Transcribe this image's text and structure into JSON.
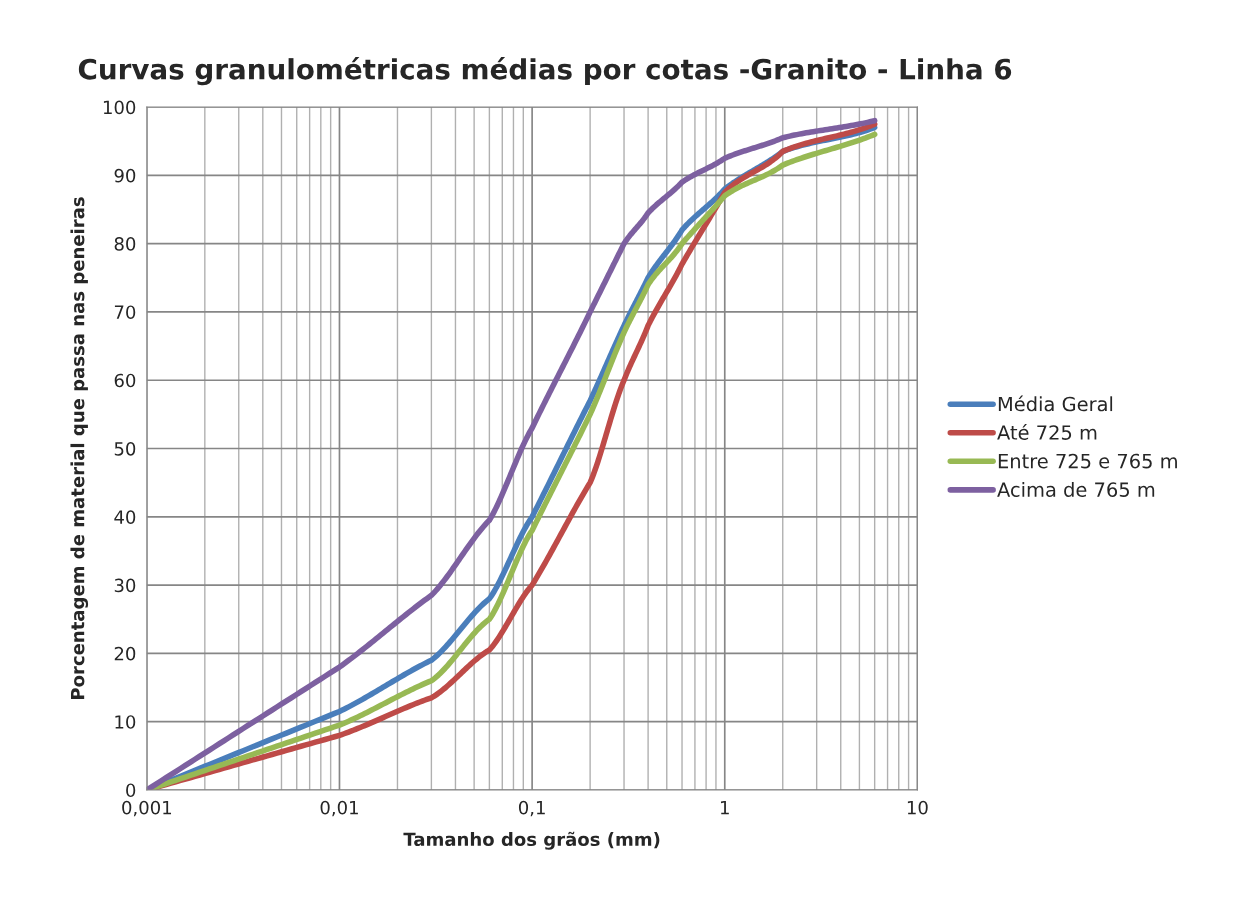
{
  "chart_data": {
    "type": "line",
    "title": "Curvas granulométricas médias por cotas -Granito - Linha 6",
    "xlabel": "Tamanho dos grãos (mm)",
    "ylabel": "Porcentagem de material que passa nas peneiras",
    "log": "x",
    "grid": true,
    "legend": "right",
    "marker": "none",
    "line_style": "solid",
    "xlim": [
      0.001,
      10
    ],
    "xticks": [
      {
        "value": 0.001,
        "label": "0,001"
      },
      {
        "value": 0.01,
        "label": "0,01"
      },
      {
        "value": 0.1,
        "label": "0,1"
      },
      {
        "value": 1,
        "label": "1"
      },
      {
        "value": 10,
        "label": "10"
      }
    ],
    "ylim": [
      0,
      100
    ],
    "yticks": [
      0,
      10,
      20,
      30,
      40,
      50,
      60,
      70,
      80,
      90,
      100
    ],
    "x": [
      0.001,
      0.01,
      0.03,
      0.06,
      0.1,
      0.2,
      0.3,
      0.4,
      0.6,
      1,
      2,
      6
    ],
    "series": [
      {
        "name": "Média Geral",
        "color": "#4a7ebb",
        "values": [
          0,
          11.5,
          19,
          28,
          40,
          57,
          68,
          75,
          82,
          88,
          93.5,
          97
        ]
      },
      {
        "name": "Até 725 m",
        "color": "#be4b48",
        "values": [
          0,
          8,
          13.5,
          20.5,
          30,
          45,
          60,
          68,
          77,
          87.5,
          93.5,
          97.5
        ]
      },
      {
        "name": "Entre 725 e 765 m",
        "color": "#98b954",
        "values": [
          0,
          9.5,
          16,
          25,
          38,
          55,
          67,
          74,
          80,
          87,
          91.5,
          96
        ]
      },
      {
        "name": "Acima de 765 m",
        "color": "#7d60a0",
        "values": [
          0,
          18,
          28.5,
          39.5,
          53,
          70,
          80,
          84.5,
          89,
          92.5,
          95.5,
          98
        ]
      }
    ]
  }
}
